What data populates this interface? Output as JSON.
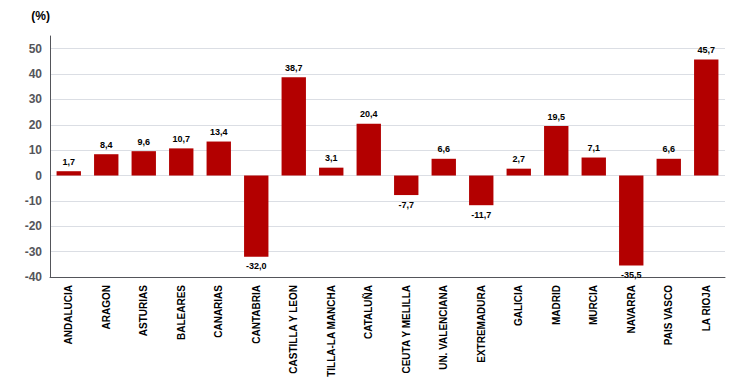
{
  "chart_data": {
    "type": "bar",
    "ylabel": "(%)",
    "categories": [
      "ANDALUCIA",
      "ARAGON",
      "ASTURIAS",
      "BALEARES",
      "CANARIAS",
      "CANTABRIA",
      "CASTILLA Y LEON",
      "TILLA-LA MANCHA",
      "CATALUÑA",
      "CEUTA Y MELILLA",
      "UN. VALENCIANA",
      "EXTREMADURA",
      "GALICIA",
      "MADRID",
      "MURCIA",
      "NAVARRA",
      "PAIS VASCO",
      "LA RIOJA"
    ],
    "values": [
      1.7,
      8.4,
      9.6,
      10.7,
      13.4,
      -32.0,
      38.7,
      3.1,
      20.4,
      -7.7,
      6.6,
      -11.7,
      2.7,
      19.5,
      7.1,
      -35.5,
      6.6,
      45.7
    ],
    "value_labels": [
      "1,7",
      "8,4",
      "9,6",
      "10,7",
      "13,4",
      "-32,0",
      "38,7",
      "3,1",
      "20,4",
      "-7,7",
      "6,6",
      "-11,7",
      "2,7",
      "19,5",
      "7,1",
      "-35,5",
      "6,6",
      "45,7"
    ],
    "data_labels": true,
    "color": "#b30000",
    "ylim": [
      -40,
      55
    ],
    "yticks": [
      -40,
      -30,
      -20,
      -10,
      0,
      10,
      20,
      30,
      40,
      50
    ],
    "grid": true
  }
}
